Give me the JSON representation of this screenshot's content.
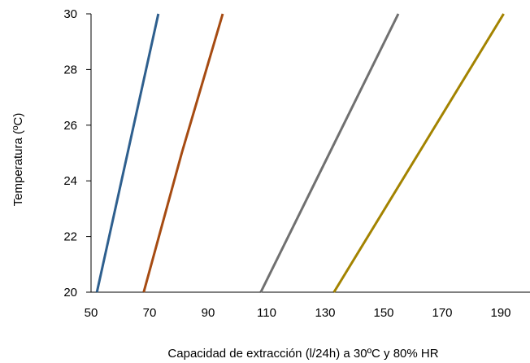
{
  "chart_data": {
    "type": "line",
    "title": "",
    "xlabel": "Capacidad de extracción (l/24h) a 30ºC y 80% HR",
    "ylabel": "Temperatura (ºC)",
    "xlim": [
      50,
      200
    ],
    "ylim": [
      20,
      30
    ],
    "xticks": [
      50,
      70,
      90,
      110,
      130,
      150,
      170,
      190
    ],
    "yticks": [
      20,
      22,
      24,
      26,
      28,
      30
    ],
    "grid": false,
    "legend": "none",
    "series": [
      {
        "color": "#2E5F8E",
        "points": [
          [
            52,
            20
          ],
          [
            73,
            30
          ]
        ]
      },
      {
        "color": "#A64B12",
        "points": [
          [
            68,
            20
          ],
          [
            81,
            25
          ],
          [
            95,
            30
          ]
        ]
      },
      {
        "color": "#707070",
        "points": [
          [
            108,
            20
          ],
          [
            155,
            30
          ]
        ]
      },
      {
        "color": "#A38300",
        "points": [
          [
            133,
            20
          ],
          [
            162,
            25
          ],
          [
            191,
            30
          ]
        ]
      }
    ]
  }
}
